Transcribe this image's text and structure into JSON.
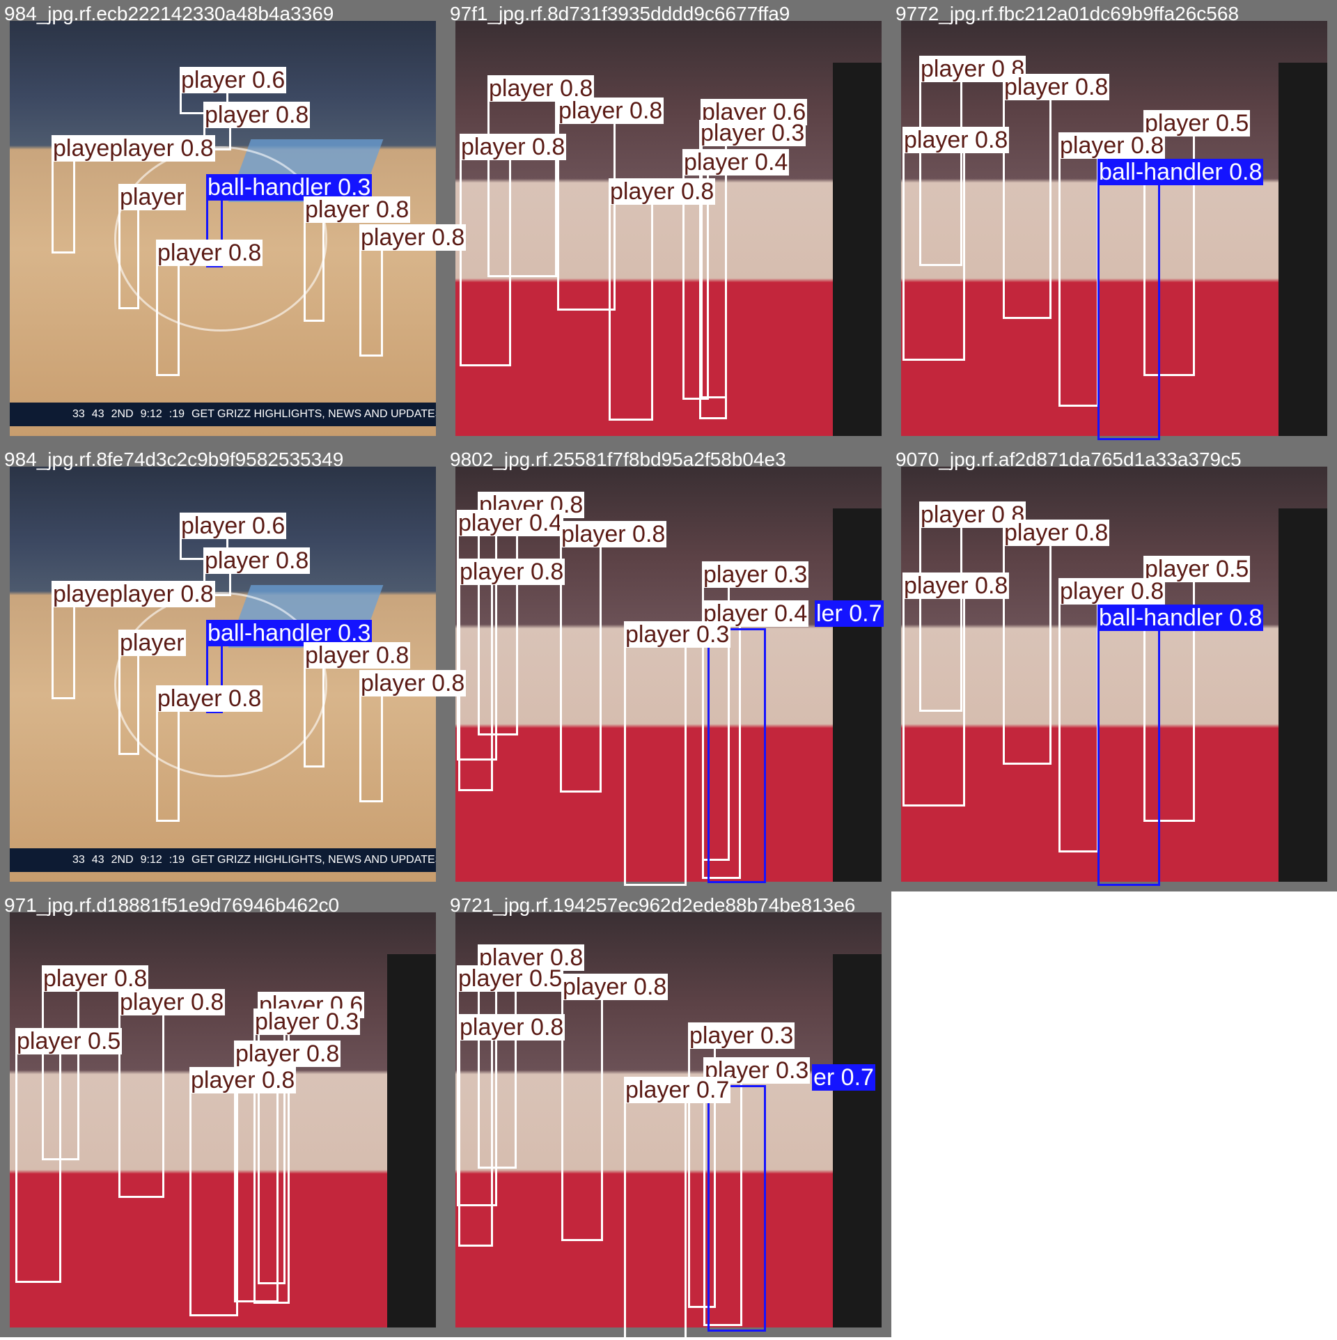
{
  "tiles": [
    {
      "title": "984_jpg.rf.ecb222142330a48b4a3369",
      "scene": "memphis",
      "score": {
        "away": "33",
        "home": "43",
        "period": "2ND",
        "clock": "9:12",
        "shot": ":19",
        "ticker": "GET GRIZZ HIGHLIGHTS, NEWS AND UPDATES ON TWITTER"
      },
      "labels": [
        "player 0.6",
        "player 0.8",
        "playeplayer 0.8",
        "player",
        "ball-handler 0.3",
        "player 0.8",
        "player 0.8",
        "player 0.8"
      ]
    },
    {
      "title": "97f1_jpg.rf.8d731f3935dddd9c6677ffa9",
      "scene": "chicago",
      "labels": [
        "player 0.8",
        "player 0.8",
        "player 0.6",
        "player 0.3",
        "player 0.8",
        "player 0.4",
        "player 0.8"
      ]
    },
    {
      "title": "9772_jpg.rf.fbc212a01dc69b9ffa26c568",
      "scene": "chicago",
      "labels": [
        "player 0.8",
        "player 0.8",
        "player 0.5",
        "player 0.8",
        "player 0.8",
        "ball-handler 0.8"
      ]
    },
    {
      "title": "984_jpg.rf.8fe74d3c2c9b9f9582535349",
      "scene": "memphis",
      "score": {
        "away": "33",
        "home": "43",
        "period": "2ND",
        "clock": "9:12",
        "shot": ":19",
        "ticker": "GET GRIZZ HIGHLIGHTS, NEWS AND UPDATES ON TWITTER"
      },
      "labels": [
        "player 0.6",
        "player 0.8",
        "playeplayer 0.8",
        "player",
        "ball-handler 0.3",
        "player 0.8",
        "player 0.8",
        "player 0.8"
      ]
    },
    {
      "title": "9802_jpg.rf.25581f7f8bd95a2f58b04e3",
      "scene": "chicago",
      "labels": [
        "player 0.8",
        "player 0.4",
        "player 0.8",
        "player 0.8",
        "player 0.3",
        "player 0.4",
        "ler 0.7",
        "player 0.3"
      ]
    },
    {
      "title": "9070_jpg.rf.af2d871da765d1a33a379c5",
      "scene": "chicago",
      "labels": [
        "player 0.8",
        "player 0.8",
        "player 0.5",
        "player 0.8",
        "player 0.8",
        "ball-handler 0.8"
      ]
    },
    {
      "title": "971_jpg.rf.d18881f51e9d76946b462c0",
      "scene": "chicago",
      "labels": [
        "player 0.8",
        "player 0.8",
        "player 0.6",
        "player 0.3",
        "player 0.8",
        "player 0.5",
        "player 0.8"
      ]
    },
    {
      "title": "9721_jpg.rf.194257ec962d2ede88b74be813e6",
      "scene": "chicago",
      "labels": [
        "player 0.8",
        "player 0.5",
        "player 0.8",
        "player 0.8",
        "player 0.3",
        "player 0.3",
        "er 0.7",
        "player 0.7"
      ]
    }
  ]
}
